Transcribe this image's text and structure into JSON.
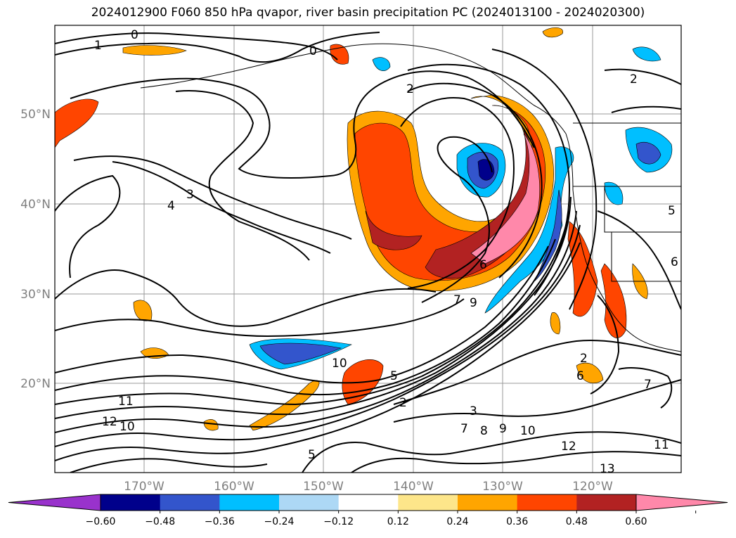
{
  "title": "2024012900 F060 850 hPa qvapor, river basin precipitation PC (2024013100 - 2024020300)",
  "lat_labels": [
    "50°N",
    "40°N",
    "30°N",
    "20°N"
  ],
  "lon_labels": [
    "170°W",
    "160°W",
    "150°W",
    "140°W",
    "130°W",
    "120°W"
  ],
  "colorbar": {
    "ticks": [
      "−0.60",
      "−0.48",
      "−0.36",
      "−0.24",
      "−0.12",
      "0.12",
      "0.24",
      "0.36",
      "0.48",
      "0.60"
    ],
    "colors": {
      "under": "#9932cc",
      "n060": "#00008b",
      "n048": "#3355cc",
      "n036": "#00bfff",
      "n024": "#add8f5",
      "n012": "#ffffff",
      "p012": "#fde68a",
      "p024": "#ffa500",
      "p036": "#ff4500",
      "p048": "#b22222",
      "over": "#ff88aa"
    }
  },
  "contour_labels": [
    "0",
    "0",
    "1",
    "2",
    "2",
    "3",
    "4",
    "5",
    "6",
    "7",
    "9",
    "10",
    "11",
    "12",
    "10",
    "5",
    "2",
    "3",
    "7",
    "8",
    "9",
    "10",
    "12",
    "13",
    "11",
    "7",
    "2",
    "6",
    "5",
    "6"
  ]
}
